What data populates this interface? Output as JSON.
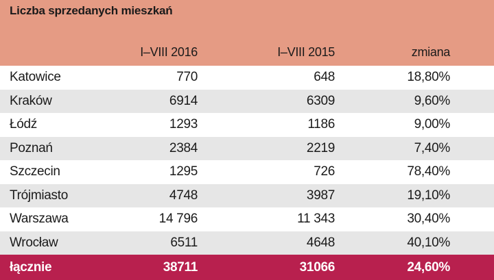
{
  "chart_data": {
    "type": "table",
    "title": "Liczba sprzedanych mieszkań",
    "columns": [
      "",
      "I–VIII 2016",
      "I–VIII 2015",
      "zmiana"
    ],
    "rows": [
      {
        "city": "Katowice",
        "y2016": "770",
        "y2015": "648",
        "change": "18,80%"
      },
      {
        "city": "Kraków",
        "y2016": "6914",
        "y2015": "6309",
        "change": "9,60%"
      },
      {
        "city": "Łódź",
        "y2016": "1293",
        "y2015": "1186",
        "change": "9,00%"
      },
      {
        "city": "Poznań",
        "y2016": "2384",
        "y2015": "2219",
        "change": "7,40%"
      },
      {
        "city": "Szczecin",
        "y2016": "1295",
        "y2015": "726",
        "change": "78,40%"
      },
      {
        "city": "Trójmiasto",
        "y2016": "4748",
        "y2015": "3987",
        "change": "19,10%"
      },
      {
        "city": "Warszawa",
        "y2016": "14 796",
        "y2015": "11 343",
        "change": "30,40%"
      },
      {
        "city": "Wrocław",
        "y2016": "6511",
        "y2015": "4648",
        "change": "40,10%"
      }
    ],
    "total": {
      "city": "łącznie",
      "y2016": "38711",
      "y2015": "31066",
      "change": "24,60%"
    }
  },
  "colors": {
    "header_bg": "#e59b84",
    "alt_row_bg": "#e6e6e6",
    "total_bg": "#b8204e"
  }
}
